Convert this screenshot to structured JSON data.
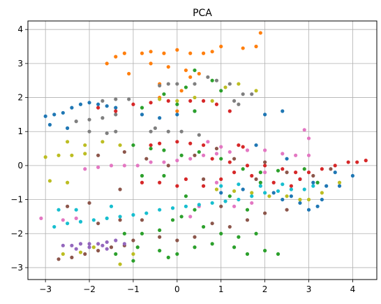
{
  "chart_data": {
    "type": "scatter",
    "title": "PCA",
    "xlabel": "",
    "ylabel": "",
    "xlim": [
      -3.4,
      4.55
    ],
    "ylim": [
      -3.35,
      4.25
    ],
    "xticks": [
      -3,
      -2,
      -1,
      0,
      1,
      2,
      3,
      4
    ],
    "yticks": [
      -3,
      -2,
      -1,
      0,
      1,
      2,
      3,
      4
    ],
    "xtick_labels": [
      "−3",
      "−2",
      "−1",
      "0",
      "1",
      "2",
      "3",
      "4"
    ],
    "ytick_labels": [
      "−3",
      "−2",
      "−1",
      "0",
      "1",
      "2",
      "3",
      "4"
    ],
    "grid": true,
    "legend": false,
    "colors": {
      "blue": "#1f77b4",
      "orange": "#ff7f0e",
      "green": "#2ca02c",
      "red": "#d62728",
      "brown": "#8c564b",
      "pink": "#e377c2",
      "gray": "#7f7f7f",
      "olive": "#bcbd22",
      "cyan": "#17becf"
    },
    "clusters": [
      {
        "color": "#ff7f0e",
        "pts": [
          [
            -1.6,
            3.0
          ],
          [
            -1.4,
            3.2
          ],
          [
            -1.2,
            3.3
          ],
          [
            -0.8,
            3.3
          ],
          [
            -0.6,
            3.35
          ],
          [
            -0.3,
            3.3
          ],
          [
            0,
            3.4
          ],
          [
            0.3,
            3.3
          ],
          [
            0.6,
            3.3
          ],
          [
            0.8,
            3.35
          ],
          [
            1.0,
            3.5
          ],
          [
            1.5,
            3.45
          ],
          [
            1.8,
            3.5
          ],
          [
            1.9,
            3.9
          ],
          [
            -0.6,
            3.0
          ],
          [
            -0.2,
            2.9
          ],
          [
            0.2,
            2.8
          ],
          [
            0.5,
            2.7
          ],
          [
            -1.1,
            2.7
          ],
          [
            -0.4,
            2.4
          ],
          [
            0.1,
            2.2
          ],
          [
            -0.4,
            2.0
          ],
          [
            0.0,
            1.6
          ],
          [
            0.3,
            2.6
          ]
        ]
      },
      {
        "color": "#7f7f7f",
        "pts": [
          [
            -0.4,
            2.35
          ],
          [
            -0.2,
            2.4
          ],
          [
            0,
            2.4
          ],
          [
            0.4,
            2.4
          ],
          [
            0.7,
            2.6
          ],
          [
            0.9,
            2.5
          ],
          [
            1.2,
            2.4
          ],
          [
            1.5,
            2.1
          ],
          [
            1.7,
            2.1
          ],
          [
            -1.7,
            1.9
          ],
          [
            -1.4,
            1.95
          ],
          [
            -1.1,
            1.95
          ],
          [
            -2.3,
            1.3
          ],
          [
            -2.0,
            1.35
          ],
          [
            -1.7,
            1.4
          ],
          [
            -1.4,
            1.5
          ],
          [
            -2.0,
            1.0
          ],
          [
            -1.6,
            0.95
          ],
          [
            -1.4,
            1.0
          ],
          [
            -0.6,
            1.0
          ],
          [
            -0.2,
            1.0
          ],
          [
            0.1,
            1.0
          ],
          [
            0.5,
            0.9
          ],
          [
            -0.5,
            1.1
          ],
          [
            1.3,
            1.9
          ],
          [
            1.4,
            1.8
          ]
        ]
      },
      {
        "color": "#1f77b4",
        "pts": [
          [
            -3.0,
            1.45
          ],
          [
            -2.8,
            1.5
          ],
          [
            -2.6,
            1.55
          ],
          [
            -2.4,
            1.7
          ],
          [
            -2.2,
            1.8
          ],
          [
            -2.0,
            1.85
          ],
          [
            -1.8,
            1.8
          ],
          [
            -1.6,
            1.75
          ],
          [
            -1.4,
            1.7
          ],
          [
            -2.9,
            1.2
          ],
          [
            -2.5,
            1.1
          ],
          [
            -0.8,
            1.5
          ],
          [
            -0.4,
            1.4
          ],
          [
            0.0,
            1.5
          ],
          [
            0.4,
            1.6
          ],
          [
            2.4,
            1.6
          ],
          [
            2.0,
            1.5
          ],
          [
            1.8,
            0.6
          ],
          [
            2.5,
            0.2
          ],
          [
            2.8,
            -0.4
          ],
          [
            3.1,
            -0.5
          ],
          [
            3.4,
            -0.6
          ],
          [
            3.7,
            -0.6
          ],
          [
            4.0,
            -0.3
          ],
          [
            3.6,
            -0.2
          ],
          [
            1.0,
            -0.8
          ],
          [
            1.5,
            -0.7
          ],
          [
            2.2,
            -0.8
          ],
          [
            2.6,
            -0.9
          ],
          [
            3.0,
            -1.3
          ],
          [
            3.2,
            -1.2
          ],
          [
            2.8,
            -1.1
          ],
          [
            2.4,
            -1.0
          ],
          [
            3.3,
            -1.0
          ]
        ]
      },
      {
        "color": "#d62728",
        "pts": [
          [
            -1.8,
            1.7
          ],
          [
            -1.4,
            1.6
          ],
          [
            -1.0,
            1.8
          ],
          [
            -0.6,
            1.85
          ],
          [
            -0.2,
            1.9
          ],
          [
            0.3,
            1.9
          ],
          [
            0.6,
            1.9
          ],
          [
            0.9,
            1.8
          ],
          [
            1.2,
            1.6
          ],
          [
            -0.6,
            0.6
          ],
          [
            -0.4,
            0.65
          ],
          [
            0,
            0.7
          ],
          [
            0.3,
            0.65
          ],
          [
            0.6,
            0.6
          ],
          [
            1.4,
            0.6
          ],
          [
            1.5,
            0.55
          ],
          [
            0.8,
            0.2
          ],
          [
            1.2,
            0.1
          ],
          [
            1.6,
            0.0
          ],
          [
            2.0,
            0.0
          ],
          [
            2.4,
            -0.1
          ],
          [
            2.7,
            -0.2
          ],
          [
            3.0,
            -0.2
          ],
          [
            3.3,
            -0.1
          ],
          [
            3.6,
            0.0
          ],
          [
            3.9,
            0.1
          ],
          [
            4.1,
            0.1
          ],
          [
            4.3,
            0.15
          ],
          [
            1.3,
            -0.2
          ],
          [
            1.7,
            -0.3
          ],
          [
            2.2,
            -0.5
          ],
          [
            2.6,
            -0.6
          ],
          [
            0.2,
            -0.4
          ],
          [
            0.6,
            -0.6
          ],
          [
            1.0,
            -0.4
          ],
          [
            -0.8,
            -0.5
          ],
          [
            -0.4,
            -0.5
          ],
          [
            0,
            -0.6
          ],
          [
            2.8,
            -0.4
          ]
        ]
      },
      {
        "color": "#2ca02c",
        "pts": [
          [
            0.4,
            2.8
          ],
          [
            0.8,
            2.5
          ],
          [
            1.0,
            2.2
          ],
          [
            0.2,
            2.3
          ],
          [
            -0.3,
            2.1
          ],
          [
            -0.8,
            1.7
          ],
          [
            0.0,
            1.8
          ],
          [
            0.4,
            1.6
          ],
          [
            -1.0,
            0.6
          ],
          [
            -0.6,
            0.5
          ],
          [
            -0.3,
            0.45
          ],
          [
            0.1,
            0.3
          ],
          [
            0.5,
            0.4
          ],
          [
            1.0,
            0.2
          ],
          [
            1.5,
            -0.1
          ],
          [
            1.9,
            -0.2
          ],
          [
            2.3,
            -0.15
          ],
          [
            2.9,
            -0.1
          ],
          [
            3.2,
            -0.5
          ],
          [
            -0.8,
            -0.3
          ],
          [
            -0.3,
            -0.3
          ],
          [
            0.2,
            -0.9
          ],
          [
            1.2,
            -0.9
          ],
          [
            1.6,
            -1.3
          ],
          [
            1.9,
            -0.5
          ],
          [
            0.1,
            -1.5
          ],
          [
            0.6,
            -1.8
          ],
          [
            1.0,
            -2.0
          ],
          [
            1.4,
            -2.1
          ],
          [
            1.8,
            -2.0
          ],
          [
            -0.4,
            -1.9
          ],
          [
            -0.8,
            -2.0
          ],
          [
            -1.2,
            -2.0
          ],
          [
            -0.9,
            -2.4
          ],
          [
            -0.4,
            -2.5
          ],
          [
            0,
            -2.6
          ],
          [
            0.4,
            -2.4
          ],
          [
            0.8,
            -2.3
          ],
          [
            1.3,
            -2.4
          ],
          [
            -1.4,
            -2.6
          ],
          [
            -1.0,
            -2.8
          ],
          [
            -0.2,
            -2.7
          ],
          [
            1.6,
            -2.6
          ],
          [
            2.0,
            -2.5
          ],
          [
            2.3,
            -2.6
          ],
          [
            -0.1,
            -1.6
          ],
          [
            0.4,
            -1.3
          ]
        ]
      },
      {
        "color": "#e377c2",
        "pts": [
          [
            -2.1,
            -0.1
          ],
          [
            -1.8,
            -0.05
          ],
          [
            -1.5,
            0.0
          ],
          [
            -1.2,
            0.0
          ],
          [
            -0.9,
            0.0
          ],
          [
            -0.6,
            0.1
          ],
          [
            -0.3,
            0.1
          ],
          [
            0,
            0.15
          ],
          [
            0.3,
            0.2
          ],
          [
            0.6,
            0.3
          ],
          [
            0.9,
            0.35
          ],
          [
            1.2,
            0.4
          ],
          [
            1.6,
            0.45
          ],
          [
            2.0,
            0.45
          ],
          [
            2.4,
            0.35
          ],
          [
            2.7,
            0.3
          ],
          [
            3.0,
            0.3
          ],
          [
            2.9,
            1.05
          ],
          [
            3.0,
            0.8
          ],
          [
            0.7,
            0.7
          ],
          [
            1.0,
            0.55
          ],
          [
            -3.1,
            -1.55
          ],
          [
            -2.6,
            -1.6
          ],
          [
            -2.3,
            -1.55
          ],
          [
            0.3,
            -1.5
          ],
          [
            0.5,
            -1.2
          ],
          [
            1.3,
            -1.2
          ],
          [
            1.7,
            -1.1
          ],
          [
            2.0,
            -0.2
          ],
          [
            0.9,
            -0.5
          ]
        ]
      },
      {
        "color": "#8c564b",
        "pts": [
          [
            -1.8,
            0.3
          ],
          [
            -1.2,
            0.4
          ],
          [
            -0.7,
            0.2
          ],
          [
            -0.2,
            0.0
          ],
          [
            0.4,
            0.3
          ],
          [
            0.9,
            0.5
          ],
          [
            1.3,
            0.2
          ],
          [
            2.0,
            0.1
          ],
          [
            2.5,
            -0.2
          ],
          [
            3.1,
            -0.3
          ],
          [
            3.5,
            -0.1
          ],
          [
            -2.5,
            -1.2
          ],
          [
            -2.0,
            -1.1
          ],
          [
            -1.3,
            -0.7
          ],
          [
            -1.8,
            -1.7
          ],
          [
            -1.3,
            -1.6
          ],
          [
            -0.8,
            -1.6
          ],
          [
            -2.7,
            -2.75
          ],
          [
            -2.4,
            -2.7
          ],
          [
            -2.1,
            -2.6
          ],
          [
            -1.8,
            -2.5
          ],
          [
            -1.5,
            -2.4
          ],
          [
            -1.2,
            -2.35
          ],
          [
            -1.0,
            -2.2
          ],
          [
            -0.4,
            -2.1
          ],
          [
            0,
            -2.2
          ],
          [
            0.4,
            -2.1
          ],
          [
            0.8,
            -1.7
          ],
          [
            1.2,
            -1.8
          ],
          [
            1.6,
            -1.6
          ],
          [
            2.0,
            -1.4
          ],
          [
            2.5,
            -1.3
          ],
          [
            1.0,
            -1.2
          ],
          [
            0.6,
            -0.4
          ],
          [
            1.8,
            -0.4
          ]
        ]
      },
      {
        "color": "#bcbd22",
        "pts": [
          [
            -0.4,
            1.95
          ],
          [
            0.0,
            1.9
          ],
          [
            0.4,
            2.0
          ],
          [
            0.8,
            1.9
          ],
          [
            1.1,
            2.3
          ],
          [
            1.4,
            2.4
          ],
          [
            1.8,
            2.2
          ],
          [
            -3.0,
            0.25
          ],
          [
            -2.7,
            0.3
          ],
          [
            -2.4,
            0.3
          ],
          [
            -2.1,
            0.35
          ],
          [
            -2.5,
            0.7
          ],
          [
            -2.1,
            0.6
          ],
          [
            -1.7,
            0.7
          ],
          [
            -1.3,
            0.6
          ],
          [
            -2.5,
            -0.5
          ],
          [
            -2.9,
            -0.45
          ],
          [
            0.9,
            -0.7
          ],
          [
            1.3,
            -0.75
          ],
          [
            1.7,
            -0.8
          ],
          [
            2.1,
            -0.9
          ],
          [
            2.5,
            -0.9
          ],
          [
            2.8,
            -1.0
          ],
          [
            3.0,
            -1.0
          ],
          [
            3.3,
            -0.8
          ],
          [
            3.7,
            -0.5
          ],
          [
            -2.6,
            -2.6
          ],
          [
            -2.2,
            -2.55
          ],
          [
            -1.9,
            -2.4
          ],
          [
            -1.0,
            -2.6
          ],
          [
            -1.3,
            -2.9
          ]
        ]
      },
      {
        "color": "#17becf",
        "pts": [
          [
            -2.8,
            -1.8
          ],
          [
            -2.5,
            -1.7
          ],
          [
            -2.2,
            -1.65
          ],
          [
            -1.9,
            -1.6
          ],
          [
            -1.6,
            -1.55
          ],
          [
            -1.3,
            -1.5
          ],
          [
            -1.0,
            -1.45
          ],
          [
            -0.7,
            -1.4
          ],
          [
            -0.4,
            -1.3
          ],
          [
            -0.1,
            -1.25
          ],
          [
            0.2,
            -1.2
          ],
          [
            0.5,
            -1.15
          ],
          [
            0.8,
            -1.1
          ],
          [
            1.1,
            -1.05
          ],
          [
            1.4,
            -1.0
          ],
          [
            1.7,
            -0.9
          ],
          [
            2.0,
            -0.8
          ],
          [
            2.3,
            -0.75
          ],
          [
            2.6,
            -0.7
          ],
          [
            2.9,
            -0.7
          ],
          [
            3.1,
            -0.6
          ],
          [
            -2.7,
            -1.3
          ],
          [
            -2.3,
            -1.3
          ],
          [
            -1.5,
            -1.2
          ],
          [
            1.0,
            -0.6
          ],
          [
            1.4,
            -0.55
          ],
          [
            1.9,
            -0.6
          ],
          [
            2.4,
            -0.55
          ]
        ]
      },
      {
        "color": "#9467bd",
        "pts": [
          [
            -2.6,
            -2.35
          ],
          [
            -2.4,
            -2.35
          ],
          [
            -2.2,
            -2.3
          ],
          [
            -2.0,
            -2.3
          ],
          [
            -1.8,
            -2.3
          ],
          [
            -1.6,
            -2.25
          ],
          [
            -1.4,
            -2.2
          ],
          [
            -1.2,
            -2.3
          ],
          [
            -2.3,
            -2.45
          ],
          [
            -2.0,
            -2.4
          ],
          [
            -1.7,
            -2.35
          ],
          [
            -1.6,
            -2.45
          ]
        ]
      }
    ]
  }
}
